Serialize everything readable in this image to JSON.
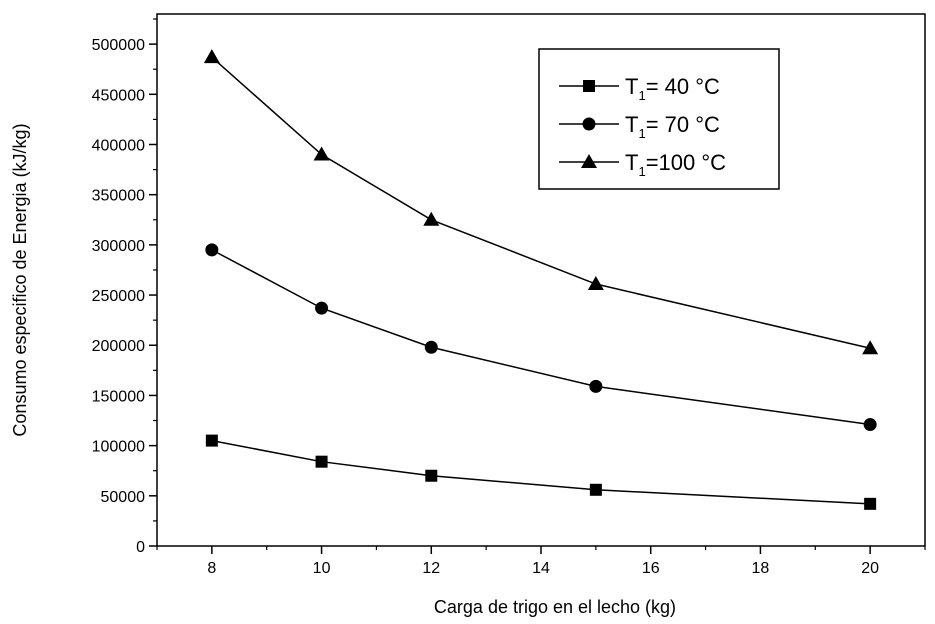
{
  "chart_data": {
    "type": "line",
    "title": "",
    "xlabel": "Carga de trigo en el lecho (kg)",
    "ylabel": "Consumo especifico de Energia (kJ/kg)",
    "x": [
      8,
      10,
      12,
      15,
      20
    ],
    "xlim": [
      7,
      21
    ],
    "ylim": [
      0,
      530000
    ],
    "xticks": [
      8,
      10,
      12,
      14,
      16,
      18,
      20
    ],
    "yticks": [
      0,
      50000,
      100000,
      150000,
      200000,
      250000,
      300000,
      350000,
      400000,
      450000,
      500000
    ],
    "ytick_labels": [
      "0",
      "50000",
      "100000",
      "150000",
      "200000",
      "250000",
      "300000",
      "350000",
      "400000",
      "450000",
      "500000"
    ],
    "grid": false,
    "legend_position": "top-right",
    "series": [
      {
        "name": "T1= 40 °C",
        "legend_main": "T",
        "legend_sub": "1",
        "legend_rest": "=  40 °C",
        "marker": "square",
        "values": [
          105000,
          84000,
          70000,
          56000,
          42000
        ]
      },
      {
        "name": "T1= 70 °C",
        "legend_main": "T",
        "legend_sub": "1",
        "legend_rest": "=  70 °C",
        "marker": "circle",
        "values": [
          295000,
          237000,
          198000,
          159000,
          121000
        ]
      },
      {
        "name": "T1=100 °C",
        "legend_main": "T",
        "legend_sub": "1",
        "legend_rest": "=100 °C",
        "marker": "triangle",
        "values": [
          487000,
          390000,
          325000,
          261000,
          197000
        ]
      }
    ]
  }
}
